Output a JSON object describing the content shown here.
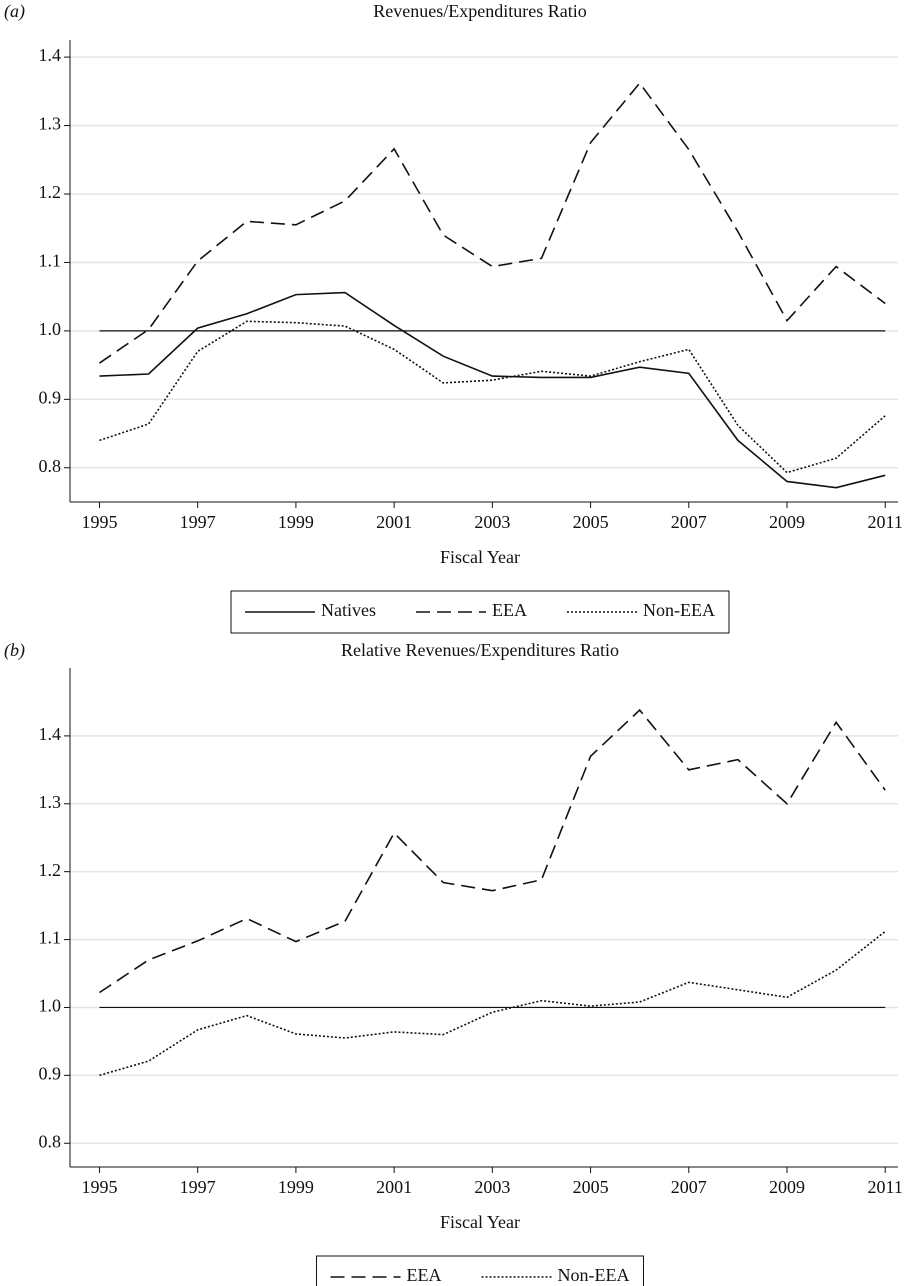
{
  "chart_data": [
    {
      "type": "line",
      "panel_label": "(a)",
      "title": "Revenues/Expenditures Ratio",
      "x_label": "Fiscal Year",
      "x": [
        1995,
        1996,
        1997,
        1998,
        1999,
        2000,
        2001,
        2002,
        2003,
        2004,
        2005,
        2006,
        2007,
        2008,
        2009,
        2010,
        2011
      ],
      "series": [
        {
          "name": "Natives",
          "color": "#111111",
          "dash": "solid",
          "values": [
            0.934,
            0.937,
            1.004,
            1.025,
            1.053,
            1.056,
            1.008,
            0.963,
            0.934,
            0.932,
            0.932,
            0.947,
            0.938,
            0.84,
            0.78,
            0.771,
            0.789
          ]
        },
        {
          "name": "EEA",
          "color": "#111111",
          "dash": "dashed",
          "values": [
            0.953,
            1.002,
            1.102,
            1.16,
            1.155,
            1.19,
            1.266,
            1.14,
            1.094,
            1.106,
            1.275,
            1.362,
            1.265,
            1.145,
            1.015,
            1.094,
            1.04
          ]
        },
        {
          "name": "Non-EEA",
          "color": "#111111",
          "dash": "dotted",
          "values": [
            0.84,
            0.864,
            0.97,
            1.014,
            1.012,
            1.007,
            0.973,
            0.924,
            0.928,
            0.941,
            0.934,
            0.955,
            0.973,
            0.862,
            0.793,
            0.814,
            0.876
          ]
        }
      ],
      "xlim": [
        1994.4,
        2011.26
      ],
      "xticks": [
        1995,
        1997,
        1999,
        2001,
        2003,
        2005,
        2007,
        2009,
        2011
      ],
      "ylim": [
        0.75,
        1.425
      ],
      "yticks": [
        0.8,
        0.9,
        {
          "value": 1,
          "label": "1.0"
        },
        1.1,
        1.2,
        1.3,
        1.4
      ],
      "reference_line": 1,
      "grid": true,
      "legend": "bottom"
    },
    {
      "type": "line",
      "panel_label": "(b)",
      "title": "Relative Revenues/Expenditures Ratio",
      "x_label": "Fiscal Year",
      "x": [
        1995,
        1996,
        1997,
        1998,
        1999,
        2000,
        2001,
        2002,
        2003,
        2004,
        2005,
        2006,
        2007,
        2008,
        2009,
        2010,
        2011
      ],
      "series": [
        {
          "name": "EEA",
          "color": "#111111",
          "dash": "dashed",
          "values": [
            1.022,
            1.07,
            1.098,
            1.131,
            1.097,
            1.127,
            1.257,
            1.184,
            1.172,
            1.188,
            1.37,
            1.438,
            1.35,
            1.365,
            1.3,
            1.42,
            1.32
          ]
        },
        {
          "name": "Non-EEA",
          "color": "#111111",
          "dash": "dotted",
          "values": [
            0.9,
            0.921,
            0.967,
            0.988,
            0.961,
            0.955,
            0.964,
            0.96,
            0.993,
            1.01,
            1.002,
            1.008,
            1.037,
            1.026,
            1.015,
            1.055,
            1.112
          ]
        }
      ],
      "xlim": [
        1994.4,
        2011.26
      ],
      "xticks": [
        1995,
        1997,
        1999,
        2001,
        2003,
        2005,
        2007,
        2009,
        2011
      ],
      "ylim": [
        0.765,
        1.5
      ],
      "yticks": [
        0.8,
        0.9,
        {
          "value": 1,
          "label": "1.0"
        },
        1.1,
        1.2,
        1.3,
        1.4
      ],
      "reference_line": 1,
      "grid": true,
      "legend": "bottom"
    }
  ]
}
